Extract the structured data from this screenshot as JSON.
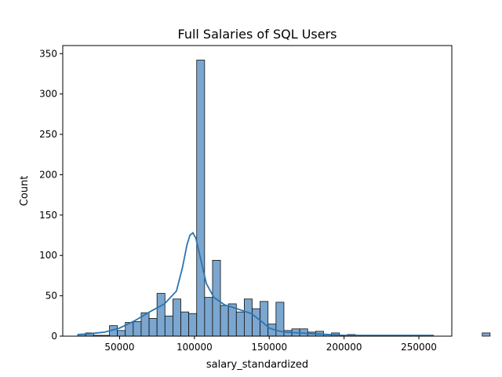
{
  "chart_data": {
    "type": "bar",
    "title": "Full Salaries of SQL Users",
    "xlabel": "salary_standardized",
    "ylabel": "Count",
    "xlim": [
      12000,
      272000
    ],
    "ylim": [
      0,
      360
    ],
    "x_ticks": [
      50000,
      100000,
      150000,
      200000,
      250000
    ],
    "y_ticks": [
      0,
      50,
      100,
      150,
      200,
      250,
      300,
      350
    ],
    "bin_start": 22000,
    "bin_width": 5300,
    "bin_counts": [
      2,
      4,
      1,
      1,
      13,
      7,
      17,
      18,
      29,
      22,
      53,
      25,
      46,
      30,
      28,
      342,
      48,
      94,
      38,
      40,
      30,
      46,
      34,
      43,
      15,
      42,
      7,
      9,
      9,
      5,
      6,
      2,
      4,
      1,
      2,
      1,
      1,
      1,
      0,
      1,
      0,
      0,
      0,
      0,
      0,
      0,
      0,
      0,
      0,
      0,
      0,
      4
    ],
    "kde": [
      [
        22000,
        2
      ],
      [
        30000,
        3
      ],
      [
        40000,
        5
      ],
      [
        50000,
        10
      ],
      [
        60000,
        19
      ],
      [
        70000,
        30
      ],
      [
        80000,
        40
      ],
      [
        88000,
        56
      ],
      [
        92000,
        85
      ],
      [
        95000,
        113
      ],
      [
        97000,
        125
      ],
      [
        99000,
        128
      ],
      [
        101000,
        121
      ],
      [
        104000,
        97
      ],
      [
        108000,
        65
      ],
      [
        113000,
        48
      ],
      [
        120000,
        39
      ],
      [
        130000,
        33
      ],
      [
        138000,
        28
      ],
      [
        145000,
        18
      ],
      [
        150000,
        10
      ],
      [
        155000,
        7
      ],
      [
        160000,
        5
      ],
      [
        170000,
        4
      ],
      [
        180000,
        3
      ],
      [
        190000,
        2
      ],
      [
        200000,
        1
      ],
      [
        220000,
        1
      ],
      [
        240000,
        1
      ],
      [
        260000,
        1
      ]
    ],
    "colors": {
      "bar_fill": "#7ba6cf",
      "bar_edge": "#111111",
      "kde_line": "#2a75b3",
      "frame": "#000000"
    }
  }
}
